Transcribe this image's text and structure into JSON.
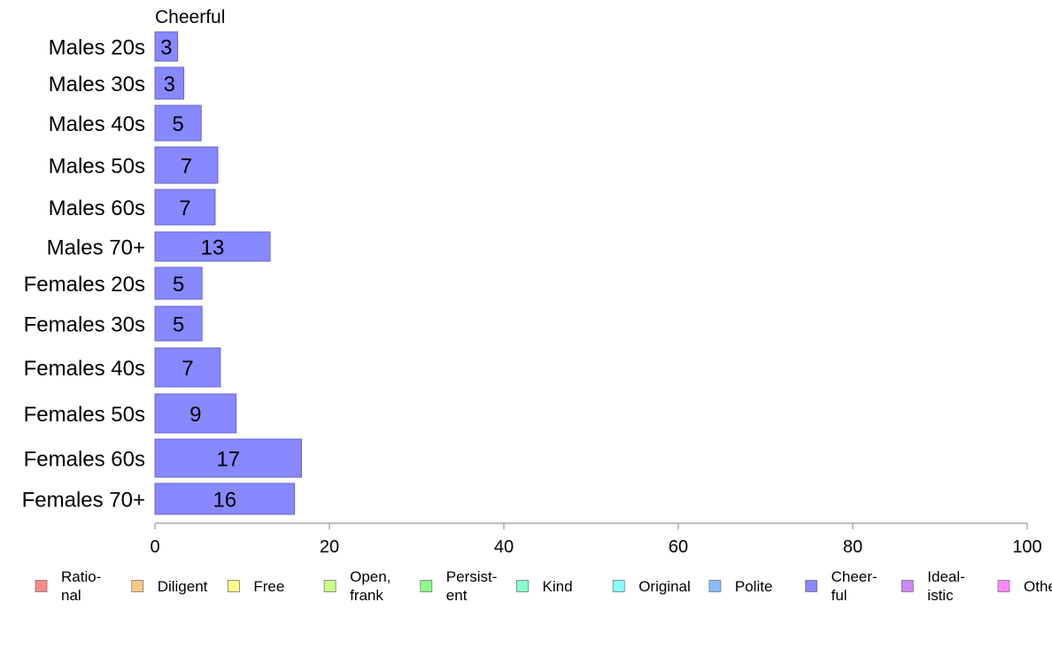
{
  "chart_data": {
    "type": "bar",
    "orientation": "horizontal",
    "title": "Cheerful",
    "categories": [
      "Males 20s",
      "Males 30s",
      "Males 40s",
      "Males 50s",
      "Males 60s",
      "Males 70+",
      "Females 20s",
      "Females 30s",
      "Females 40s",
      "Females 50s",
      "Females 60s",
      "Females 70+"
    ],
    "values": [
      2.6,
      3.3,
      5.3,
      7.2,
      6.9,
      13.2,
      5.4,
      5.4,
      7.5,
      9.3,
      16.8,
      16.0
    ],
    "value_labels": [
      "3",
      "3",
      "5",
      "7",
      "7",
      "13",
      "5",
      "5",
      "7",
      "9",
      "17",
      "16"
    ],
    "bar_color": "#8888ff",
    "bar_border": "#6666cc",
    "xlim": [
      0,
      100
    ],
    "xticks": [
      "0",
      "20",
      "40",
      "60",
      "80",
      "100"
    ],
    "xlabel": "",
    "ylabel": "",
    "grid": false,
    "legend_position": "bottom",
    "legend": [
      {
        "lines": [
          "Ratio-",
          "nal"
        ],
        "color": "#ff8888"
      },
      {
        "lines": [
          "Diligent"
        ],
        "color": "#ffc888"
      },
      {
        "lines": [
          "Free"
        ],
        "color": "#ffff88"
      },
      {
        "lines": [
          "Open,",
          "frank"
        ],
        "color": "#ccff88"
      },
      {
        "lines": [
          "Persist-",
          "ent"
        ],
        "color": "#88ff88"
      },
      {
        "lines": [
          "Kind"
        ],
        "color": "#88ffcc"
      },
      {
        "lines": [
          "Original"
        ],
        "color": "#88ffff"
      },
      {
        "lines": [
          "Polite"
        ],
        "color": "#88bbff"
      },
      {
        "lines": [
          "Cheer-",
          "ful"
        ],
        "color": "#8888ff"
      },
      {
        "lines": [
          "Ideal-",
          "istic"
        ],
        "color": "#cc88ff"
      },
      {
        "lines": [
          "Other"
        ],
        "color": "#ff88ff"
      }
    ]
  }
}
